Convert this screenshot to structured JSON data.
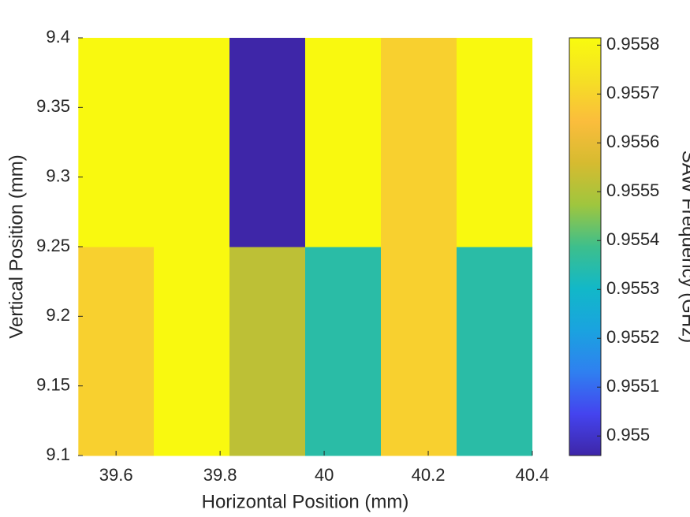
{
  "chart_data": {
    "type": "heatmap",
    "x_label": "Horizontal Position (mm)",
    "y_label": "Vertical Position (mm)",
    "colorbar_label": "SAW Frequency (GHz)",
    "x": [
      39.6,
      39.745,
      39.891,
      40.036,
      40.182,
      40.327
    ],
    "y": [
      9.175,
      9.325
    ],
    "values": [
      [
        0.95569,
        0.95581,
        0.95552,
        0.95535,
        0.95569,
        0.95535
      ],
      [
        0.95581,
        0.95581,
        0.95496,
        0.95581,
        0.95569,
        0.95581
      ]
    ],
    "xlim": [
      39.527,
      40.4
    ],
    "ylim": [
      9.1,
      9.4
    ],
    "xticks": [
      39.6,
      39.8,
      40,
      40.2,
      40.4
    ],
    "yticks": [
      9.1,
      9.15,
      9.2,
      9.25,
      9.3,
      9.35,
      9.4
    ],
    "clim": [
      0.95496,
      0.955815
    ],
    "cticks": [
      0.955,
      0.9551,
      0.9552,
      0.9553,
      0.9554,
      0.9555,
      0.9556,
      0.9557,
      0.9558
    ],
    "colormap": [
      "#3e26a8",
      "#4444ef",
      "#2f80f0",
      "#1aa3df",
      "#12b8c8",
      "#3dbf8c",
      "#9fc63e",
      "#d6bb30",
      "#fbbd3c",
      "#f5e024",
      "#f9fb0e"
    ]
  }
}
